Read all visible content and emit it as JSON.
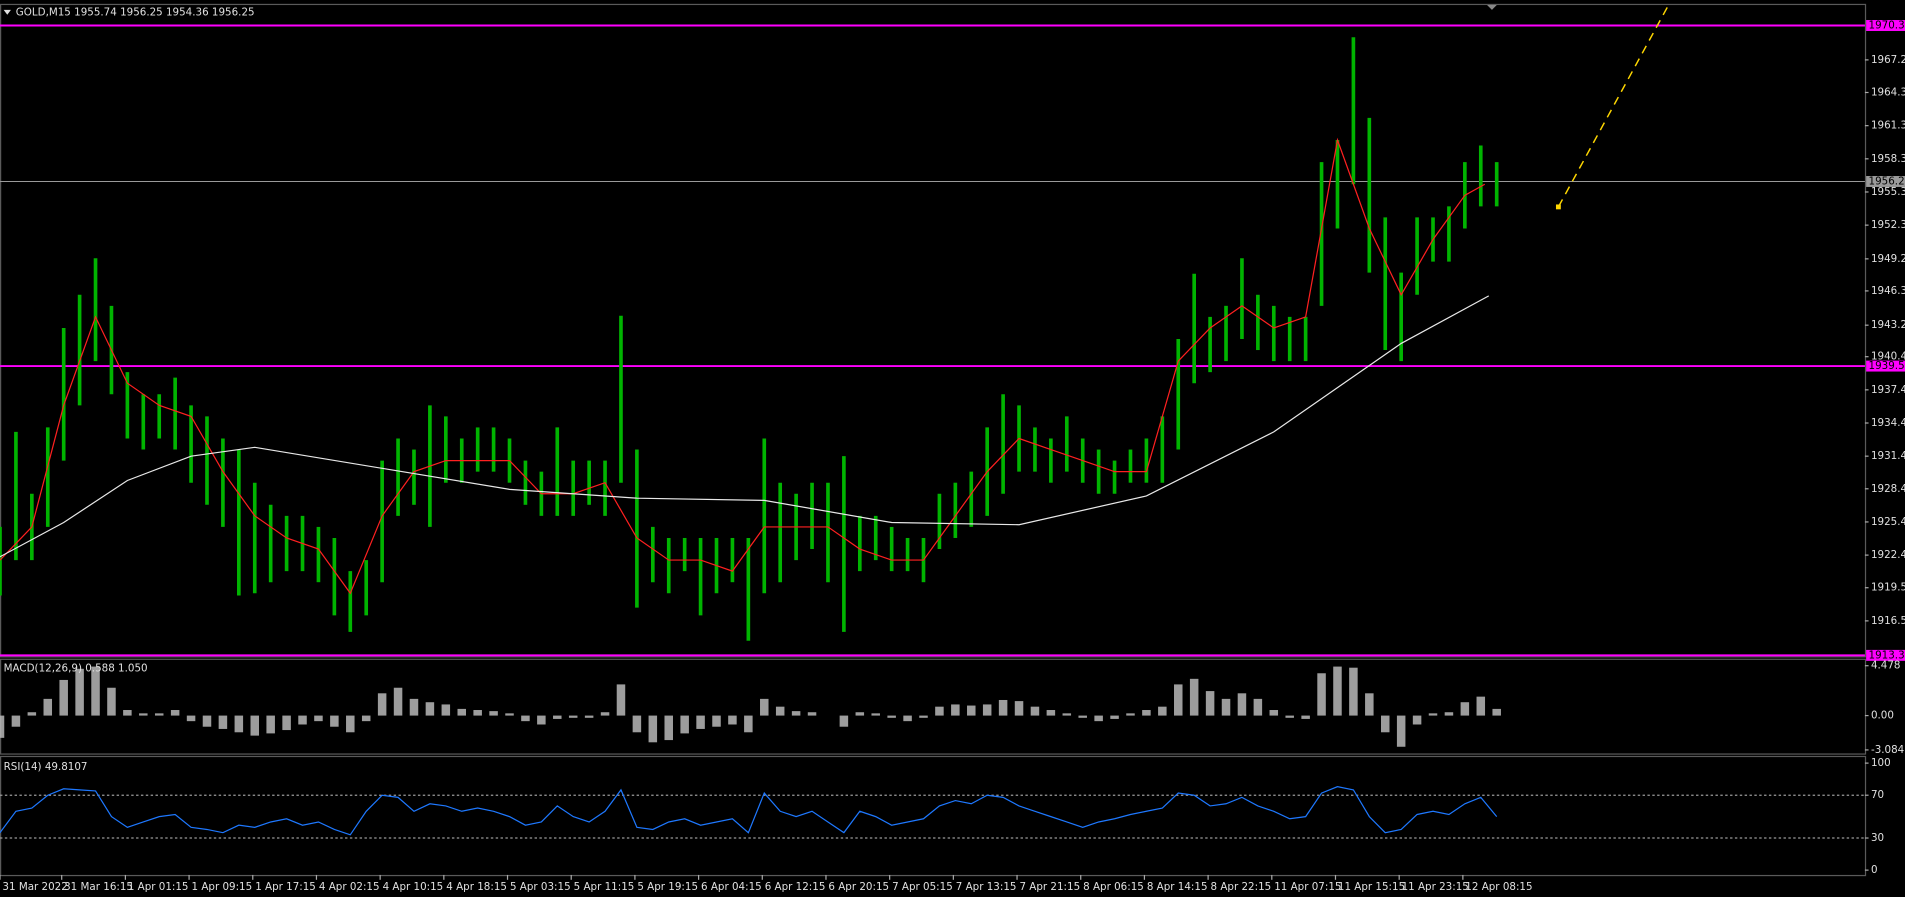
{
  "chart_data": [
    {
      "type": "hilo",
      "title": "GOLD,M15  1955.74 1956.25 1954.36 1956.25",
      "color": "#00b400",
      "x": [
        0,
        8,
        16,
        24,
        32,
        40,
        48,
        56,
        64,
        72,
        80,
        88,
        96,
        104,
        112,
        120,
        128,
        136,
        144,
        152,
        160,
        168,
        176,
        184,
        192,
        200,
        208,
        216,
        224,
        232,
        240,
        248,
        256,
        264,
        272,
        280,
        288,
        296,
        304,
        312,
        320,
        328,
        336,
        344,
        352,
        360,
        368,
        376,
        384,
        392,
        400,
        408,
        416,
        424,
        432,
        440,
        448,
        456,
        464,
        472,
        480,
        488,
        496,
        504,
        512,
        520,
        528,
        536,
        544,
        552,
        560,
        568,
        576,
        584,
        592,
        600,
        608,
        616,
        624,
        632,
        640,
        648,
        656,
        664,
        672,
        680,
        688,
        696,
        704,
        712,
        720,
        728,
        736,
        744,
        752
      ],
      "high": [
        1925,
        1933.6,
        1928,
        1934,
        1943,
        1946,
        1949.3,
        1945,
        1939,
        1937,
        1937,
        1938.5,
        1936,
        1935,
        1933,
        1932,
        1929,
        1927,
        1926,
        1926,
        1925,
        1924,
        1921,
        1922,
        1931,
        1933,
        1932,
        1936,
        1935,
        1933,
        1934,
        1934,
        1933,
        1931,
        1930,
        1934,
        1931,
        1931,
        1931,
        1944.1,
        1932,
        1925,
        1924,
        1924,
        1924,
        1924,
        1924,
        1924,
        1933,
        1929,
        1928,
        1929,
        1929,
        1931.4,
        1926,
        1926,
        1925,
        1924,
        1924,
        1928,
        1929,
        1930,
        1934,
        1937,
        1936,
        1934,
        1933,
        1935,
        1933,
        1932,
        1931,
        1932,
        1933,
        1935,
        1942,
        1947.9,
        1944,
        1945,
        1949.3,
        1946,
        1945,
        1944,
        1944,
        1958,
        1960,
        1969.3,
        1962,
        1953,
        1948,
        1953,
        1953,
        1954,
        1958,
        1959.5,
        1958
      ],
      "low": [
        1918.8,
        1922,
        1922,
        1925,
        1931,
        1936,
        1940,
        1937,
        1933,
        1932,
        1933,
        1932,
        1929,
        1927,
        1925,
        1918.8,
        1919,
        1920,
        1921,
        1921,
        1920,
        1917,
        1915.5,
        1917,
        1920,
        1926,
        1927,
        1925,
        1929,
        1929,
        1930,
        1930,
        1929,
        1927,
        1926,
        1926,
        1926,
        1927,
        1926,
        1929,
        1917.7,
        1920,
        1919,
        1921,
        1917,
        1919,
        1920,
        1914.7,
        1919,
        1920,
        1922,
        1923,
        1920,
        1915.5,
        1921,
        1922,
        1921,
        1921,
        1920,
        1923,
        1924,
        1925,
        1926,
        1928,
        1930,
        1930,
        1929,
        1930,
        1929,
        1928,
        1928,
        1929,
        1929,
        1929,
        1932,
        1938,
        1939,
        1940,
        1942,
        1941,
        1940,
        1940,
        1940,
        1945,
        1952,
        1956,
        1948,
        1941,
        1940,
        1946,
        1949,
        1949,
        1952,
        1954,
        1954
      ],
      "series": [
        {
          "color": "#ff2020",
          "x": [
            0,
            16,
            32,
            48,
            64,
            80,
            96,
            112,
            128,
            144,
            160,
            176,
            192,
            208,
            224,
            240,
            256,
            272,
            288,
            304,
            320,
            336,
            352,
            368,
            384,
            400,
            416,
            432,
            448,
            464,
            480,
            496,
            512,
            528,
            544,
            560,
            576,
            592,
            608,
            624,
            640,
            656,
            672,
            688,
            704,
            720,
            736,
            746
          ],
          "values": [
            1922,
            1925,
            1936,
            1944,
            1938,
            1936,
            1935,
            1930,
            1926,
            1924,
            1923,
            1919,
            1926,
            1930,
            1931,
            1931,
            1931,
            1928,
            1928,
            1929,
            1924,
            1922,
            1922,
            1921,
            1925,
            1925,
            1925,
            1923,
            1922,
            1922,
            1926,
            1930,
            1933,
            1932,
            1931,
            1930,
            1930,
            1940,
            1943,
            1945,
            1943,
            1944,
            1960,
            1952,
            1946,
            1951,
            1955,
            1956
          ]
        },
        {
          "color": "#e8e8e8",
          "x": [
            0,
            32,
            64,
            96,
            128,
            192,
            256,
            320,
            384,
            448,
            512,
            576,
            640,
            704,
            748
          ],
          "values": [
            1922.3,
            1925.4,
            1929.2,
            1931.4,
            1932.2,
            1930.3,
            1928.4,
            1927.6,
            1927.4,
            1925.4,
            1925.2,
            1927.8,
            1933.6,
            1941.6,
            1945.9
          ]
        },
        {
          "color": "#ffd700",
          "dash": true,
          "x": [
            783,
            838
          ],
          "values": [
            1953.95,
            1972.1
          ]
        }
      ],
      "hlines": [
        {
          "value": 1970.36,
          "color": "#ff00ff"
        },
        {
          "value": 1939.55,
          "color": "#ff00ff"
        },
        {
          "value": 1913.38,
          "color": "#ff00ff"
        },
        {
          "value": 1956.25,
          "color": "#9a9a9a"
        }
      ],
      "xlim": [
        0,
        937
      ],
      "ylim": [
        1913.3,
        1972.1
      ],
      "xticks": [
        {
          "value": 0,
          "label": "31 Mar 2022"
        },
        {
          "value": 31,
          "label": "31 Mar 16:15"
        },
        {
          "value": 63,
          "label": "1 Apr 01:15"
        },
        {
          "value": 95,
          "label": "1 Apr 09:15"
        },
        {
          "value": 127,
          "label": "1 Apr 17:15"
        },
        {
          "value": 159,
          "label": "4 Apr 02:15"
        },
        {
          "value": 191,
          "label": "4 Apr 10:15"
        },
        {
          "value": 223,
          "label": "4 Apr 18:15"
        },
        {
          "value": 255,
          "label": "5 Apr 03:15"
        },
        {
          "value": 287,
          "label": "5 Apr 11:15"
        },
        {
          "value": 319,
          "label": "5 Apr 19:15"
        },
        {
          "value": 351,
          "label": "6 Apr 04:15"
        },
        {
          "value": 383,
          "label": "6 Apr 12:15"
        },
        {
          "value": 415,
          "label": "6 Apr 20:15"
        },
        {
          "value": 447,
          "label": "7 Apr 05:15"
        },
        {
          "value": 479,
          "label": "7 Apr 13:15"
        },
        {
          "value": 511,
          "label": "7 Apr 21:15"
        },
        {
          "value": 543,
          "label": "8 Apr 06:15"
        },
        {
          "value": 575,
          "label": "8 Apr 14:15"
        },
        {
          "value": 607,
          "label": "8 Apr 22:15"
        },
        {
          "value": 639,
          "label": "11 Apr 07:15"
        },
        {
          "value": 671,
          "label": "11 Apr 15:15"
        },
        {
          "value": 703,
          "label": "11 Apr 23:15"
        },
        {
          "value": 735,
          "label": "12 Apr 08:15"
        }
      ],
      "yticks": [
        1967.25,
        {
          "value": 1964.3,
          "label": "1964.30"
        },
        {
          "value": 1961.3,
          "label": "1961.30"
        },
        {
          "value": 1958.3,
          "label": "1958.30"
        },
        {
          "value": 1955.3,
          "label": "1955.30"
        },
        {
          "value": 1952.3,
          "label": "1952.30"
        },
        1949.25,
        1946.35,
        1943.25,
        {
          "value": 1940.4,
          "label": "1940.40"
        },
        {
          "value": 1937.4,
          "label": "1937.40"
        },
        {
          "value": 1934.4,
          "label": "1934.40"
        },
        {
          "value": 1931.4,
          "label": "1931.40"
        },
        1928.45,
        1925.45,
        1922.45,
        {
          "value": 1919.5,
          "label": "1919.50"
        },
        {
          "value": 1916.5,
          "label": "1916.50"
        }
      ]
    },
    {
      "type": "bar",
      "title": "MACD(12,26,9) 0.588 1.050",
      "color": "#b8b8b8",
      "x": [
        0,
        8,
        16,
        24,
        32,
        40,
        48,
        56,
        64,
        72,
        80,
        88,
        96,
        104,
        112,
        120,
        128,
        136,
        144,
        152,
        160,
        168,
        176,
        184,
        192,
        200,
        208,
        216,
        224,
        232,
        240,
        248,
        256,
        264,
        272,
        280,
        288,
        296,
        304,
        312,
        320,
        328,
        336,
        344,
        352,
        360,
        368,
        376,
        384,
        392,
        400,
        408,
        416,
        424,
        432,
        440,
        448,
        456,
        464,
        472,
        480,
        488,
        496,
        504,
        512,
        520,
        528,
        536,
        544,
        552,
        560,
        568,
        576,
        584,
        592,
        600,
        608,
        616,
        624,
        632,
        640,
        648,
        656,
        664,
        672,
        680,
        688,
        696,
        704,
        712,
        720,
        728,
        736,
        744,
        752
      ],
      "values": [
        -2,
        -1,
        0.3,
        1.5,
        3.2,
        4.2,
        4.4,
        2.5,
        0.5,
        0.2,
        0.2,
        0.5,
        -0.5,
        -1,
        -1.2,
        -1.5,
        -1.8,
        -1.6,
        -1.3,
        -0.8,
        -0.5,
        -1,
        -1.5,
        -0.5,
        2,
        2.5,
        1.5,
        1.2,
        1,
        0.6,
        0.5,
        0.4,
        0.2,
        -0.5,
        -0.8,
        -0.3,
        -0.2,
        -0.2,
        0.3,
        2.8,
        -1.5,
        -2.4,
        -2.2,
        -1.6,
        -1.2,
        -1,
        -0.8,
        -1.5,
        1.5,
        0.8,
        0.4,
        0.3,
        0,
        -1,
        0.3,
        0.2,
        -0.2,
        -0.5,
        -0.2,
        0.8,
        1,
        0.9,
        1,
        1.4,
        1.3,
        0.8,
        0.5,
        0.2,
        -0.2,
        -0.5,
        -0.3,
        0.2,
        0.5,
        0.8,
        2.8,
        3.3,
        2.2,
        1.5,
        2,
        1.5,
        0.5,
        -0.2,
        -0.3,
        3.8,
        4.4,
        4.3,
        2,
        -1.5,
        -2.8,
        -0.8,
        0.2,
        0.3,
        1.2,
        1.7,
        0.6
      ],
      "xlim": [
        0,
        937
      ],
      "ylim": [
        -3.4,
        5.0
      ],
      "yticks": [
        4.478,
        {
          "value": 0,
          "label": "0.00"
        },
        -3.084
      ]
    },
    {
      "type": "line",
      "title": "RSI(14) 49.8107",
      "color": "#1e78ff",
      "x": [
        0,
        8,
        16,
        24,
        32,
        40,
        48,
        56,
        64,
        72,
        80,
        88,
        96,
        104,
        112,
        120,
        128,
        136,
        144,
        152,
        160,
        168,
        176,
        184,
        192,
        200,
        208,
        216,
        224,
        232,
        240,
        248,
        256,
        264,
        272,
        280,
        288,
        296,
        304,
        312,
        320,
        328,
        336,
        344,
        352,
        360,
        368,
        376,
        384,
        392,
        400,
        408,
        416,
        424,
        432,
        440,
        448,
        456,
        464,
        472,
        480,
        488,
        496,
        504,
        512,
        520,
        528,
        536,
        544,
        552,
        560,
        568,
        576,
        584,
        592,
        600,
        608,
        616,
        624,
        632,
        640,
        648,
        656,
        664,
        672,
        680,
        688,
        696,
        704,
        712,
        720,
        728,
        736,
        744,
        752
      ],
      "values": [
        35,
        55,
        58,
        70,
        76,
        75,
        74,
        50,
        40,
        45,
        50,
        52,
        40,
        38,
        35,
        42,
        40,
        45,
        48,
        42,
        45,
        38,
        33,
        55,
        70,
        68,
        55,
        62,
        60,
        55,
        58,
        55,
        50,
        42,
        45,
        60,
        50,
        45,
        55,
        75,
        40,
        38,
        45,
        48,
        42,
        45,
        48,
        35,
        72,
        55,
        50,
        55,
        45,
        35,
        55,
        50,
        42,
        45,
        48,
        60,
        65,
        62,
        70,
        68,
        60,
        55,
        50,
        45,
        40,
        45,
        48,
        52,
        55,
        58,
        72,
        70,
        60,
        62,
        68,
        60,
        55,
        48,
        50,
        72,
        78,
        75,
        50,
        35,
        38,
        52,
        55,
        52,
        62,
        68,
        50
      ],
      "levels": [
        70,
        30
      ],
      "xlim": [
        0,
        937
      ],
      "ylim": [
        -4.5,
        104.5
      ],
      "yticks": [
        100,
        70,
        30,
        0
      ]
    }
  ]
}
